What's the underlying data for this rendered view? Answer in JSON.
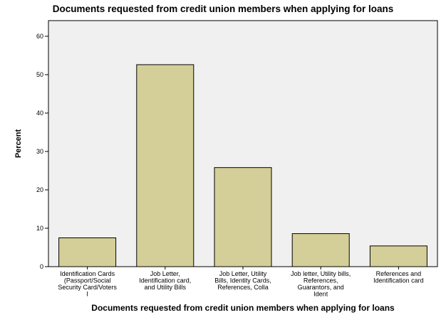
{
  "chart_data": {
    "type": "bar",
    "title": "Documents requested from credit union members when applying for loans",
    "xlabel": "Documents requested from credit union members when applying for loans",
    "ylabel": "Percent",
    "ylim": [
      0,
      60
    ],
    "yticks": [
      0,
      10,
      20,
      30,
      40,
      50,
      60
    ],
    "grid": false,
    "categories": [
      "Identification Cards (Passport/Social Security Card/Voters I",
      "Job Letter, Identification card, and Utility Bills",
      "Job Letter, Utility Bills, Identity Cards, References, Colla",
      "Job letter, Utility bills, References, Guarantors, and Ident",
      "References and Identification card"
    ],
    "category_lines": [
      [
        "Identification Cards",
        "(Passport/Social",
        "Security Card/Voters",
        "I"
      ],
      [
        "Job Letter,",
        "Identification card,",
        "and Utility Bills"
      ],
      [
        "Job Letter, Utility",
        "Bills, Identity Cards,",
        "References, Colla"
      ],
      [
        "Job letter, Utility bills,",
        "References,",
        "Guarantors, and",
        "Ident"
      ],
      [
        "References and",
        "Identification card"
      ]
    ],
    "values": [
      7.5,
      52.6,
      25.8,
      8.6,
      5.4
    ],
    "bar_color": "#d4cf98",
    "plot_bg": "#f0f0f0"
  }
}
